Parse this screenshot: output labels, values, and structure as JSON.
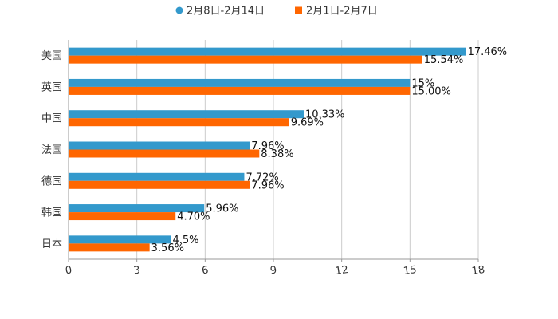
{
  "chart_data": {
    "type": "bar",
    "orientation": "horizontal",
    "title": "",
    "xlabel": "",
    "ylabel": "",
    "xlim": [
      0,
      18
    ],
    "xticks": [
      0,
      3,
      6,
      9,
      12,
      15,
      18
    ],
    "grid": true,
    "legend_position": "top-center",
    "categories": [
      "美国",
      "英国",
      "中国",
      "法国",
      "德国",
      "韩国",
      "日本"
    ],
    "series": [
      {
        "name": "2月8日-2月14日",
        "color": "#3399cc",
        "marker": "circle",
        "values": [
          17.46,
          15,
          10.33,
          7.96,
          7.72,
          5.96,
          4.5
        ],
        "labels": [
          "17.46%",
          "15%",
          "10.33%",
          "7.96%",
          "7.72%",
          "5.96%",
          "4.5%"
        ]
      },
      {
        "name": "2月1日-2月7日",
        "color": "#ff6600",
        "marker": "square",
        "values": [
          15.54,
          15.0,
          9.69,
          8.38,
          7.96,
          4.7,
          3.56
        ],
        "labels": [
          "15.54%",
          "15.00%",
          "9.69%",
          "8.38%",
          "7.96%",
          "4.70%",
          "3.56%"
        ]
      }
    ]
  }
}
